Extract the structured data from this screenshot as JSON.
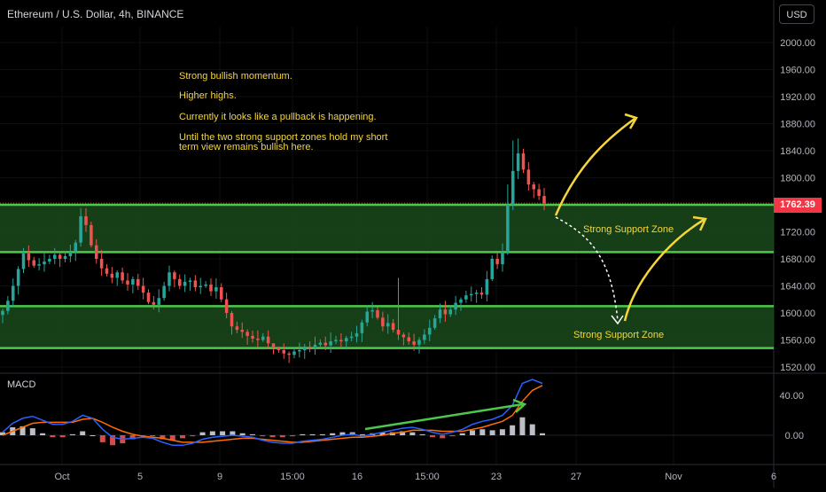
{
  "header": {
    "symbol_title": "Ethereum / U.S. Dollar, 4h, BINANCE",
    "currency_button": "USD",
    "macd_label": "MACD",
    "last_price": "1762.39"
  },
  "annotations": {
    "notes": [
      "Strong bullish momentum.",
      "Higher highs.",
      "Currently it looks like a pullback is happening.",
      "Until the two strong support zones hold my short",
      "term view remains bullish here."
    ],
    "zone_upper_label": "Strong Support Zone",
    "zone_lower_label": "Strong Support Zone"
  },
  "colors": {
    "background": "#000000",
    "up": "#26a69a",
    "down": "#ef5350",
    "zone_fill": "#1b4a1b",
    "zone_line": "#4cc94c",
    "annotation": "#f5d63a",
    "macd_line": "#2962ff",
    "signal_line": "#ff6d00",
    "price_tag": "#f23645"
  },
  "chart_data": [
    {
      "type": "candlestick",
      "title": "Ethereum / U.S. Dollar, 4h, BINANCE",
      "y_ticks": [
        2000,
        1960,
        1920,
        1880,
        1840,
        1800,
        1760,
        1720,
        1680,
        1640,
        1600,
        1560,
        1520
      ],
      "y_tick_labels": [
        "2000.00",
        "1960.00",
        "1920.00",
        "1880.00",
        "1840.00",
        "1800.00",
        "1760.00",
        "1720.00",
        "1680.00",
        "1640.00",
        "1600.00",
        "1560.00",
        "1520.00"
      ],
      "x_tick_labels": [
        "Oct",
        "5",
        "9",
        "15:00",
        "16",
        "15:00",
        "23",
        "27",
        "Nov",
        "6"
      ],
      "ylim": [
        1510,
        2030
      ],
      "last_price": 1762.39,
      "support_zones": [
        {
          "label": "Strong Support Zone",
          "top": 1760,
          "bottom": 1690
        },
        {
          "label": "Strong Support Zone",
          "top": 1610,
          "bottom": 1548
        }
      ],
      "close_series": [
        1603,
        1618,
        1640,
        1665,
        1688,
        1678,
        1670,
        1672,
        1676,
        1680,
        1686,
        1680,
        1684,
        1690,
        1704,
        1743,
        1730,
        1700,
        1680,
        1666,
        1658,
        1652,
        1660,
        1648,
        1642,
        1650,
        1640,
        1630,
        1616,
        1612,
        1622,
        1640,
        1660,
        1650,
        1640,
        1646,
        1648,
        1638,
        1640,
        1642,
        1632,
        1638,
        1620,
        1600,
        1580,
        1575,
        1572,
        1566,
        1562,
        1560,
        1565,
        1555,
        1550,
        1545,
        1540,
        1538,
        1543,
        1545,
        1550,
        1548,
        1553,
        1556,
        1552,
        1558,
        1560,
        1558,
        1563,
        1565,
        1570,
        1586,
        1602,
        1604,
        1593,
        1580,
        1585,
        1575,
        1568,
        1564,
        1558,
        1553,
        1560,
        1568,
        1578,
        1592,
        1605,
        1598,
        1605,
        1615,
        1620,
        1626,
        1628,
        1630,
        1627,
        1650,
        1680,
        1672,
        1690,
        1760,
        1810,
        1836,
        1812,
        1790,
        1783,
        1773,
        1762
      ]
    },
    {
      "type": "macd",
      "title": "MACD",
      "y_tick_labels": [
        "40.00",
        "0.00"
      ],
      "ylim": [
        -15,
        60
      ],
      "macd_line": [
        3,
        12,
        17,
        19,
        15,
        11,
        11,
        14,
        20,
        17,
        6,
        -2,
        -4,
        -3,
        -2,
        -3,
        -7,
        -10,
        -10,
        -8,
        -4,
        -2,
        -1,
        0,
        -1,
        -2,
        -5,
        -7,
        -8,
        -8,
        -6,
        -5,
        -4,
        -2,
        0,
        1,
        -1,
        1,
        3,
        5,
        7,
        8,
        6,
        3,
        1,
        3,
        6,
        11,
        14,
        16,
        20,
        30,
        52,
        56,
        52
      ],
      "signal_line": [
        0,
        4,
        8,
        12,
        13,
        13,
        13,
        13,
        16,
        17,
        13,
        8,
        4,
        1,
        -1,
        -2,
        -3,
        -5,
        -7,
        -7,
        -7,
        -6,
        -5,
        -4,
        -3,
        -3,
        -4,
        -5,
        -6,
        -7,
        -7,
        -6,
        -5,
        -4,
        -3,
        -2,
        -2,
        -1,
        0,
        2,
        3,
        5,
        5,
        5,
        4,
        4,
        4,
        6,
        8,
        11,
        14,
        20,
        34,
        45,
        50
      ],
      "histogram": [
        3,
        8,
        9,
        7,
        2,
        -2,
        -2,
        1,
        4,
        0,
        -7,
        -10,
        -8,
        -4,
        -1,
        -1,
        -4,
        -5,
        -3,
        -1,
        3,
        4,
        4,
        4,
        2,
        1,
        -1,
        -2,
        -2,
        -1,
        1,
        1,
        1,
        2,
        3,
        3,
        1,
        2,
        3,
        3,
        4,
        3,
        1,
        -2,
        -3,
        -1,
        2,
        5,
        6,
        5,
        6,
        10,
        18,
        11,
        2
      ]
    }
  ]
}
